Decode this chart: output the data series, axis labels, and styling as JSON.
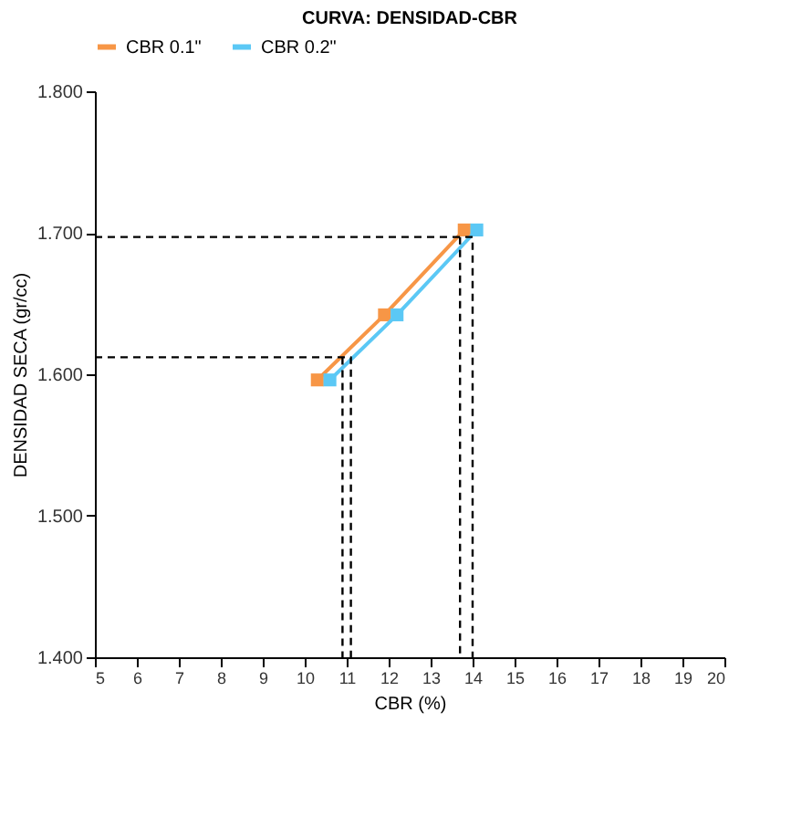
{
  "chart_data": {
    "type": "line",
    "title": "CURVA: DENSIDAD-CBR",
    "xlabel": "CBR (%)",
    "ylabel": "DENSIDAD SECA (gr/cc)",
    "xlim": [
      5,
      20
    ],
    "xticks": [
      5,
      6,
      7,
      8,
      9,
      10,
      11,
      12,
      13,
      14,
      15,
      16,
      17,
      18,
      19,
      20
    ],
    "ylim": [
      1.4,
      1.8
    ],
    "yticks": [
      {
        "value": 1.4,
        "label": "1.400"
      },
      {
        "value": 1.5,
        "label": "1.500"
      },
      {
        "value": 1.6,
        "label": "1.600"
      },
      {
        "value": 1.7,
        "label": "1.700"
      },
      {
        "value": 1.8,
        "label": "1.800"
      }
    ],
    "grid": false,
    "legend": "top",
    "marker": "square",
    "line_style": "solid",
    "series": [
      {
        "name": "CBR 0.1\"",
        "color": "#f79646",
        "x": [
          10.3,
          11.9,
          13.8
        ],
        "values": [
          1.596,
          1.642,
          1.702
        ]
      },
      {
        "name": "CBR 0.2\"",
        "color": "#5bc8f5",
        "x": [
          10.6,
          12.2,
          14.1
        ],
        "values": [
          1.596,
          1.642,
          1.702
        ]
      },
      {
        "color": "#000000",
        "marker": "none",
        "line_style": "dashed",
        "x": [
          5,
          11.1,
          11.1
        ],
        "values": [
          1.612,
          1.612,
          1.4
        ]
      },
      {
        "color": "#000000",
        "marker": "none",
        "line_style": "dashed",
        "x": [
          10.9,
          10.9
        ],
        "values": [
          1.612,
          1.4
        ]
      },
      {
        "color": "#000000",
        "marker": "none",
        "line_style": "dashed",
        "x": [
          5,
          14.0,
          14.0
        ],
        "values": [
          1.697,
          1.697,
          1.4
        ]
      },
      {
        "color": "#000000",
        "marker": "none",
        "line_style": "dashed",
        "x": [
          13.7,
          13.7
        ],
        "values": [
          1.697,
          1.4
        ]
      }
    ]
  }
}
